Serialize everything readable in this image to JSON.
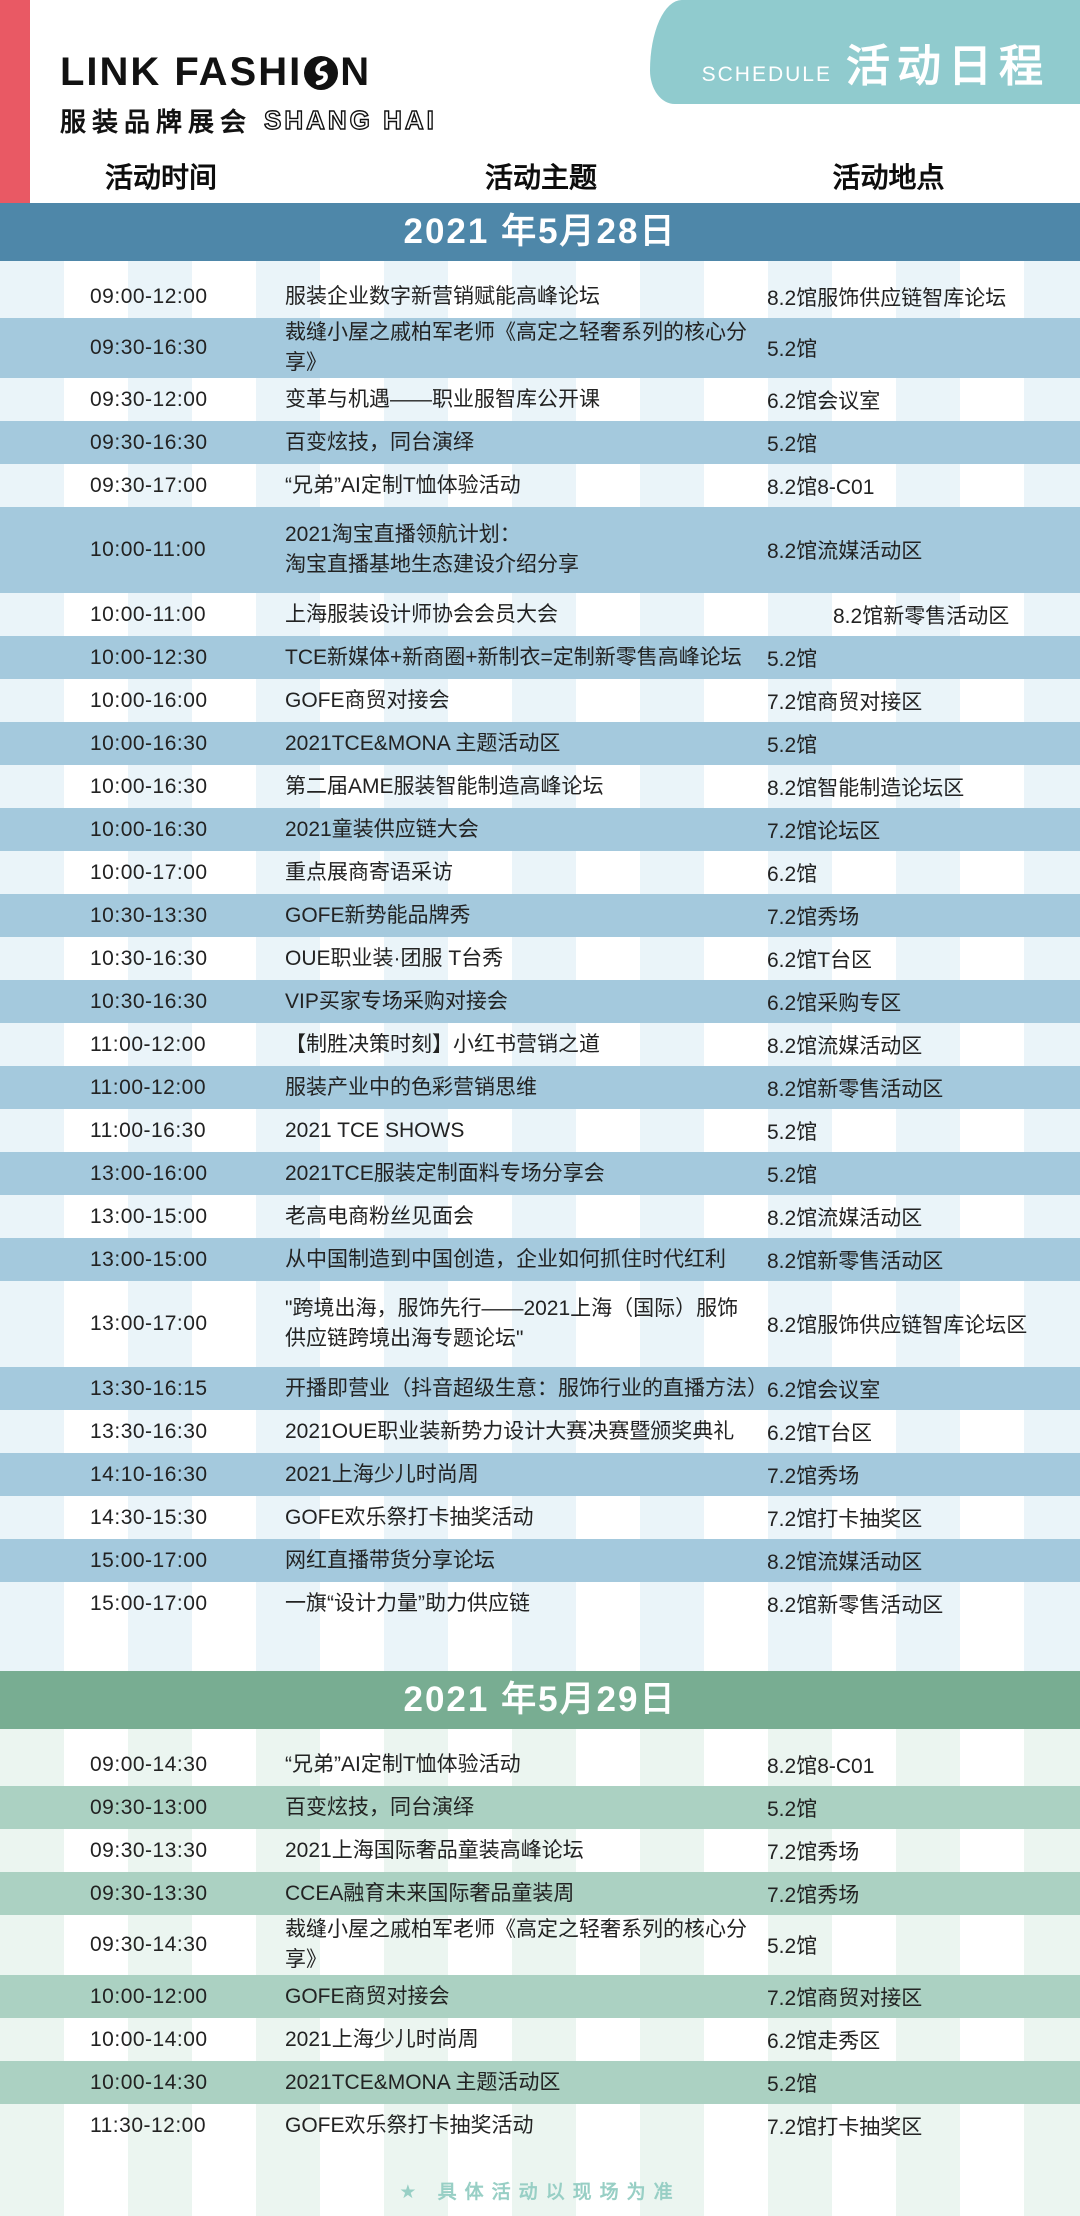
{
  "header": {
    "brand_line1_left": "LINK FASHI",
    "brand_line1_right": "N",
    "brand_cn": "服装品牌展会",
    "brand_city": "SHANG HAI",
    "schedule_en": "SCHEDULE",
    "schedule_cn": "活动日程"
  },
  "columns": {
    "time": "活动时间",
    "topic": "活动主题",
    "venue": "活动地点"
  },
  "colors": {
    "accent_red": "#e95964",
    "teal_tab": "#90cbce",
    "banner_blue": "#4e87a9",
    "row_blue": "#a4c9dd",
    "banner_green": "#78ad92",
    "row_green": "#abd1c2",
    "stripe_blue": "#eaf4f9",
    "stripe_green": "#ebf5f0",
    "footer_text": "#98cfc5"
  },
  "sections": [
    {
      "date": "2021 年5月28日",
      "theme": "blue",
      "events": [
        {
          "time": "09:00-12:00",
          "topic_lines": [
            "服装企业数字新营销赋能高峰论坛"
          ],
          "venue": "8.2馆服饰供应链智库论坛",
          "highlight": false
        },
        {
          "time": "09:30-16:30",
          "topic_lines": [
            "裁缝小屋之戚柏军老师《高定之轻奢系列的核心分享》"
          ],
          "venue": "5.2馆",
          "highlight": true
        },
        {
          "time": "09:30-12:00",
          "topic_lines": [
            "变革与机遇——职业服智库公开课"
          ],
          "venue": "6.2馆会议室",
          "highlight": false
        },
        {
          "time": "09:30-16:30",
          "topic_lines": [
            "百变炫技，同台演绎"
          ],
          "venue": "5.2馆",
          "highlight": true
        },
        {
          "time": "09:30-17:00",
          "topic_lines": [
            "“兄弟”AI定制T恤体验活动"
          ],
          "venue": "8.2馆8-C01",
          "highlight": false
        },
        {
          "time": "10:00-11:00",
          "topic_lines": [
            "2021淘宝直播领航计划：",
            "淘宝直播基地生态建设介绍分享"
          ],
          "venue": "8.2馆流媒活动区",
          "highlight": true
        },
        {
          "time": "10:00-11:00",
          "topic_lines": [
            "上海服装设计师协会会员大会"
          ],
          "venue": "8.2馆新零售活动区",
          "highlight": false,
          "venue_indent": true
        },
        {
          "time": "10:00-12:30",
          "topic_lines": [
            "TCE新媒体+新商圈+新制衣=定制新零售高峰论坛"
          ],
          "venue": "5.2馆",
          "highlight": true
        },
        {
          "time": "10:00-16:00",
          "topic_lines": [
            "GOFE商贸对接会"
          ],
          "venue": "7.2馆商贸对接区",
          "highlight": false
        },
        {
          "time": "10:00-16:30",
          "topic_lines": [
            "2021TCE&MONA 主题活动区"
          ],
          "venue": "5.2馆",
          "highlight": true
        },
        {
          "time": "10:00-16:30",
          "topic_lines": [
            "第二届AME服装智能制造高峰论坛"
          ],
          "venue": "8.2馆智能制造论坛区",
          "highlight": false
        },
        {
          "time": "10:00-16:30",
          "topic_lines": [
            "2021童装供应链大会"
          ],
          "venue": "7.2馆论坛区",
          "highlight": true
        },
        {
          "time": "10:00-17:00",
          "topic_lines": [
            "重点展商寄语采访"
          ],
          "venue": "6.2馆",
          "highlight": false
        },
        {
          "time": "10:30-13:30",
          "topic_lines": [
            "GOFE新势能品牌秀"
          ],
          "venue": "7.2馆秀场",
          "highlight": true
        },
        {
          "time": "10:30-16:30",
          "topic_lines": [
            "OUE职业装·团服 T台秀"
          ],
          "venue": "6.2馆T台区",
          "highlight": false
        },
        {
          "time": "10:30-16:30",
          "topic_lines": [
            "VIP买家专场采购对接会"
          ],
          "venue": "6.2馆采购专区",
          "highlight": true
        },
        {
          "time": "11:00-12:00",
          "topic_lines": [
            "【制胜决策时刻】小红书营销之道"
          ],
          "venue": "8.2馆流媒活动区",
          "highlight": false
        },
        {
          "time": "11:00-12:00",
          "topic_lines": [
            "服装产业中的色彩营销思维"
          ],
          "venue": "8.2馆新零售活动区",
          "highlight": true
        },
        {
          "time": "11:00-16:30",
          "topic_lines": [
            "2021 TCE SHOWS"
          ],
          "venue": "5.2馆",
          "highlight": false
        },
        {
          "time": "13:00-16:00",
          "topic_lines": [
            "2021TCE服装定制面料专场分享会"
          ],
          "venue": "5.2馆",
          "highlight": true
        },
        {
          "time": "13:00-15:00",
          "topic_lines": [
            "老高电商粉丝见面会"
          ],
          "venue": "8.2馆流媒活动区",
          "highlight": false
        },
        {
          "time": "13:00-15:00",
          "topic_lines": [
            "从中国制造到中国创造，企业如何抓住时代红利"
          ],
          "venue": "8.2馆新零售活动区",
          "highlight": true
        },
        {
          "time": "13:00-17:00",
          "topic_lines": [
            "\"跨境出海，服饰先行——2021上海（国际）服饰",
            "供应链跨境出海专题论坛\""
          ],
          "venue": "8.2馆服饰供应链智库论坛区",
          "highlight": false
        },
        {
          "time": "13:30-16:15",
          "topic_lines": [
            "开播即营业（抖音超级生意：服饰行业的直播方法）"
          ],
          "venue": "6.2馆会议室",
          "highlight": true
        },
        {
          "time": "13:30-16:30",
          "topic_lines": [
            "2021OUE职业装新势力设计大赛决赛暨颁奖典礼"
          ],
          "venue": "6.2馆T台区",
          "highlight": false
        },
        {
          "time": "14:10-16:30",
          "topic_lines": [
            "2021上海少儿时尚周"
          ],
          "venue": "7.2馆秀场",
          "highlight": true
        },
        {
          "time": "14:30-15:30",
          "topic_lines": [
            "GOFE欢乐祭打卡抽奖活动"
          ],
          "venue": "7.2馆打卡抽奖区",
          "highlight": false
        },
        {
          "time": "15:00-17:00",
          "topic_lines": [
            "网红直播带货分享论坛"
          ],
          "venue": "8.2馆流媒活动区",
          "highlight": true
        },
        {
          "time": "15:00-17:00",
          "topic_lines": [
            "一旗“设计力量”助力供应链"
          ],
          "venue": "8.2馆新零售活动区",
          "highlight": false
        }
      ]
    },
    {
      "date": "2021 年5月29日",
      "theme": "green",
      "events": [
        {
          "time": "09:00-14:30",
          "topic_lines": [
            "“兄弟”AI定制T恤体验活动"
          ],
          "venue": "8.2馆8-C01",
          "highlight": false
        },
        {
          "time": "09:30-13:00",
          "topic_lines": [
            "百变炫技，同台演绎"
          ],
          "venue": "5.2馆",
          "highlight": true
        },
        {
          "time": "09:30-13:30",
          "topic_lines": [
            "2021上海国际奢品童装高峰论坛"
          ],
          "venue": "7.2馆秀场",
          "highlight": false
        },
        {
          "time": "09:30-13:30",
          "topic_lines": [
            "CCEA融育未来国际奢品童装周"
          ],
          "venue": "7.2馆秀场",
          "highlight": true
        },
        {
          "time": "09:30-14:30",
          "topic_lines": [
            "裁缝小屋之戚柏军老师《高定之轻奢系列的核心分享》"
          ],
          "venue": "5.2馆",
          "highlight": false
        },
        {
          "time": "10:00-12:00",
          "topic_lines": [
            "GOFE商贸对接会"
          ],
          "venue": "7.2馆商贸对接区",
          "highlight": true
        },
        {
          "time": "10:00-14:00",
          "topic_lines": [
            "2021上海少儿时尚周"
          ],
          "venue": "6.2馆走秀区",
          "highlight": false
        },
        {
          "time": "10:00-14:30",
          "topic_lines": [
            "2021TCE&MONA 主题活动区"
          ],
          "venue": "5.2馆",
          "highlight": true
        },
        {
          "time": "11:30-12:00",
          "topic_lines": [
            "GOFE欢乐祭打卡抽奖活动"
          ],
          "venue": "7.2馆打卡抽奖区",
          "highlight": false
        }
      ]
    }
  ],
  "footer": {
    "note": "★ 具体活动以现场为准"
  }
}
